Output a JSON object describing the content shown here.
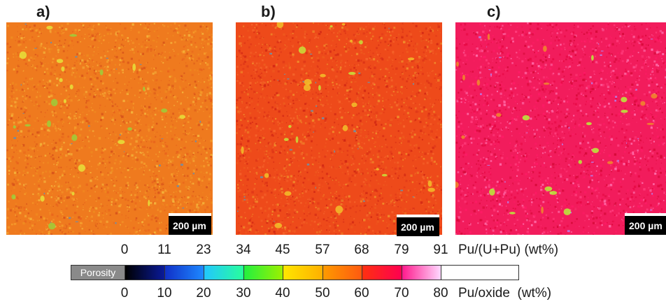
{
  "panels": [
    {
      "label": "a)",
      "scale_bar": "200 µm",
      "base_color": "#ef7a1e"
    },
    {
      "label": "b)",
      "scale_bar": "200 µm",
      "base_color": "#ee4a1a"
    },
    {
      "label": "c)",
      "scale_bar": "200 µm",
      "base_color": "#f21c5c"
    }
  ],
  "colorbar": {
    "top_ticks": [
      "0",
      "11",
      "23",
      "34",
      "45",
      "57",
      "68",
      "79",
      "91"
    ],
    "top_unit": "Pu/(U+Pu) (wt%)",
    "bottom_ticks": [
      "0",
      "10",
      "20",
      "30",
      "40",
      "50",
      "60",
      "70",
      "80"
    ],
    "bottom_unit": "Pu/oxide  (wt%)",
    "porosity_label": "Porosity",
    "porosity_color": "#8a8a8a",
    "segment_colors": [
      [
        "#000000",
        "#0a1a9a"
      ],
      [
        "#1030c8",
        "#1e88ff"
      ],
      [
        "#22c6ff",
        "#28ff9c"
      ],
      [
        "#22f040",
        "#9cf000"
      ],
      [
        "#ffe600",
        "#ffb000"
      ],
      [
        "#ff9a00",
        "#ff5a10"
      ],
      [
        "#ff3010",
        "#ff0050"
      ],
      [
        "#ff1a8c",
        "#ffd8ff"
      ],
      [
        "#ffffff",
        "#ffffff"
      ]
    ]
  }
}
